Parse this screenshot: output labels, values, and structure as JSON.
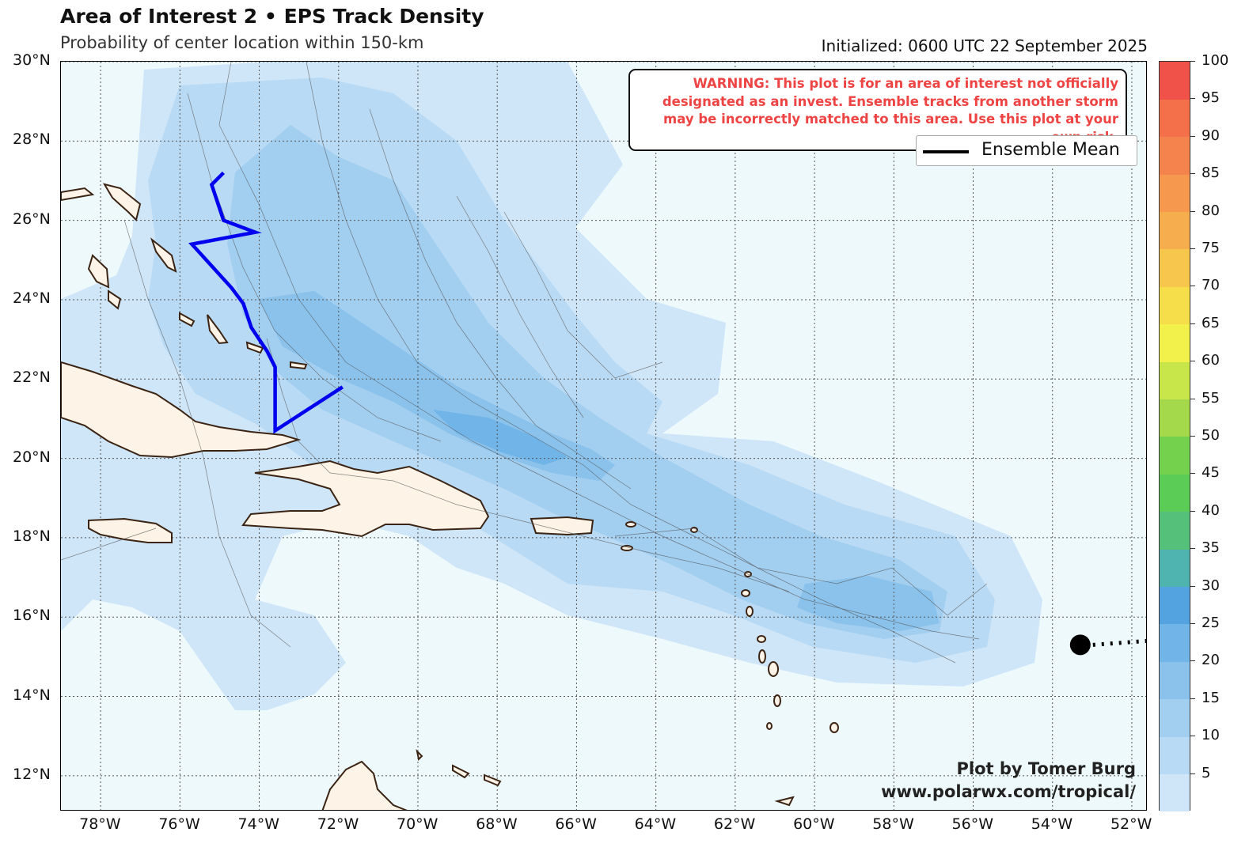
{
  "header": {
    "title": "Area of Interest 2 • EPS Track Density",
    "subtitle": "Probability of center location within 150-km",
    "initialized": "Initialized: 0600 UTC 22 September 2025"
  },
  "warning_text": "WARNING: This plot is for an area of interest not officially designated as an invest. Ensemble tracks from another storm may be incorrectly matched to this area. Use this plot at your own risk.",
  "legend": {
    "ensemble_mean_label": "Ensemble Mean"
  },
  "credit": {
    "line1": "Plot by Tomer Burg",
    "line2": "www.polarwx.com/tropical/"
  },
  "map_extent": {
    "lon_min": -79,
    "lon_max": -51.6,
    "lat_min": 11.1,
    "lat_max": 30
  },
  "lat_ticks": [
    {
      "lat": 30,
      "label": "30°N"
    },
    {
      "lat": 28,
      "label": "28°N"
    },
    {
      "lat": 26,
      "label": "26°N"
    },
    {
      "lat": 24,
      "label": "24°N"
    },
    {
      "lat": 22,
      "label": "22°N"
    },
    {
      "lat": 20,
      "label": "20°N"
    },
    {
      "lat": 18,
      "label": "18°N"
    },
    {
      "lat": 16,
      "label": "16°N"
    },
    {
      "lat": 14,
      "label": "14°N"
    },
    {
      "lat": 12,
      "label": "12°N"
    }
  ],
  "lon_ticks": [
    {
      "lon": -78,
      "label": "78°W"
    },
    {
      "lon": -76,
      "label": "76°W"
    },
    {
      "lon": -74,
      "label": "74°W"
    },
    {
      "lon": -72,
      "label": "72°W"
    },
    {
      "lon": -70,
      "label": "70°W"
    },
    {
      "lon": -68,
      "label": "68°W"
    },
    {
      "lon": -66,
      "label": "66°W"
    },
    {
      "lon": -64,
      "label": "64°W"
    },
    {
      "lon": -62,
      "label": "62°W"
    },
    {
      "lon": -60,
      "label": "60°W"
    },
    {
      "lon": -58,
      "label": "58°W"
    },
    {
      "lon": -56,
      "label": "56°W"
    },
    {
      "lon": -54,
      "label": "54°W"
    },
    {
      "lon": -52,
      "label": "52°W"
    }
  ],
  "ensemble_mean_track": [
    {
      "lon": -74.9,
      "lat": 27.2
    },
    {
      "lon": -75.2,
      "lat": 26.9
    },
    {
      "lon": -74.9,
      "lat": 26.0
    },
    {
      "lon": -74.1,
      "lat": 25.7
    },
    {
      "lon": -75.7,
      "lat": 25.4
    },
    {
      "lon": -74.7,
      "lat": 24.3
    },
    {
      "lon": -74.4,
      "lat": 23.9
    },
    {
      "lon": -74.2,
      "lat": 23.3
    },
    {
      "lon": -73.8,
      "lat": 22.7
    },
    {
      "lon": -73.6,
      "lat": 22.3
    },
    {
      "lon": -73.6,
      "lat": 20.7
    },
    {
      "lon": -71.9,
      "lat": 21.8
    }
  ],
  "current_position": {
    "lon": -53.3,
    "lat": 15.3
  },
  "forecast_dotted_line": [
    {
      "lon": -53.3,
      "lat": 15.3
    },
    {
      "lon": -51.6,
      "lat": 15.4
    }
  ],
  "colorbar": {
    "ticks": [
      5,
      10,
      15,
      20,
      25,
      30,
      35,
      40,
      45,
      50,
      55,
      60,
      65,
      70,
      75,
      80,
      85,
      90,
      95,
      100
    ],
    "levels": [
      {
        "from": 0,
        "to": 5,
        "color": "#cfe6f8"
      },
      {
        "from": 5,
        "to": 10,
        "color": "#b9daf4"
      },
      {
        "from": 10,
        "to": 15,
        "color": "#a2cef0"
      },
      {
        "from": 15,
        "to": 20,
        "color": "#8ac2ec"
      },
      {
        "from": 20,
        "to": 25,
        "color": "#70b4e8"
      },
      {
        "from": 25,
        "to": 30,
        "color": "#52a3e0"
      },
      {
        "from": 30,
        "to": 35,
        "color": "#4fb3b0"
      },
      {
        "from": 35,
        "to": 40,
        "color": "#55c07a"
      },
      {
        "from": 40,
        "to": 45,
        "color": "#5bcc55"
      },
      {
        "from": 45,
        "to": 50,
        "color": "#73d14e"
      },
      {
        "from": 50,
        "to": 55,
        "color": "#a4d94b"
      },
      {
        "from": 55,
        "to": 60,
        "color": "#c8e54a"
      },
      {
        "from": 60,
        "to": 65,
        "color": "#f2f04a"
      },
      {
        "from": 65,
        "to": 70,
        "color": "#f6dd4a"
      },
      {
        "from": 70,
        "to": 75,
        "color": "#f6c64d"
      },
      {
        "from": 75,
        "to": 80,
        "color": "#f6ad4e"
      },
      {
        "from": 80,
        "to": 85,
        "color": "#f6994e"
      },
      {
        "from": 85,
        "to": 90,
        "color": "#f5834d"
      },
      {
        "from": 90,
        "to": 95,
        "color": "#f4704b"
      },
      {
        "from": 95,
        "to": 100,
        "color": "#f05249"
      }
    ]
  },
  "colors": {
    "ocean": "#eef9fc",
    "land": "#fdf3e6",
    "coast": "#3b2414",
    "track": "#0000ee"
  }
}
